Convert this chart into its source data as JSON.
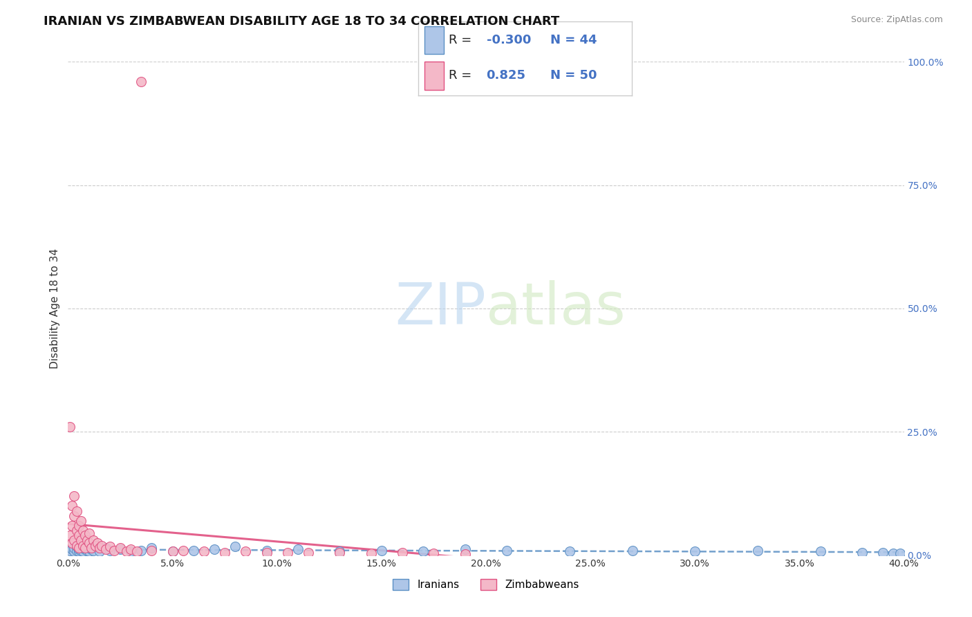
{
  "title": "IRANIAN VS ZIMBABWEAN DISABILITY AGE 18 TO 34 CORRELATION CHART",
  "source_text": "Source: ZipAtlas.com",
  "ylabel": "Disability Age 18 to 34",
  "xlim": [
    0.0,
    0.4
  ],
  "ylim": [
    0.0,
    1.0
  ],
  "xticks": [
    0.0,
    0.05,
    0.1,
    0.15,
    0.2,
    0.25,
    0.3,
    0.35,
    0.4
  ],
  "xticklabels": [
    "0.0%",
    "5.0%",
    "10.0%",
    "15.0%",
    "20.0%",
    "25.0%",
    "30.0%",
    "35.0%",
    "40.0%"
  ],
  "yticks": [
    0.0,
    0.25,
    0.5,
    0.75,
    1.0
  ],
  "yticklabels": [
    "0.0%",
    "25.0%",
    "50.0%",
    "75.0%",
    "100.0%"
  ],
  "iranian_color": "#aec6e8",
  "zimbabwean_color": "#f4b8c8",
  "iranian_edge": "#5a8fc4",
  "zimbabwean_edge": "#e05080",
  "trend_iranian_color": "#5a8fc4",
  "trend_zimbabwean_color": "#e05080",
  "R_iranian": -0.3,
  "N_iranian": 44,
  "R_zimbabwean": 0.825,
  "N_zimbabwean": 50,
  "legend_label_iranian": "Iranians",
  "legend_label_zimbabwean": "Zimbabweans",
  "watermark_zip": "ZIP",
  "watermark_atlas": "atlas",
  "background_color": "#ffffff",
  "grid_color": "#cccccc",
  "title_fontsize": 13,
  "axis_label_fontsize": 11,
  "tick_fontsize": 10,
  "legend_fontsize": 13,
  "watermark_fontsize": 60,
  "iranian_x": [
    0.001,
    0.002,
    0.003,
    0.003,
    0.004,
    0.004,
    0.005,
    0.005,
    0.006,
    0.006,
    0.007,
    0.008,
    0.009,
    0.01,
    0.011,
    0.012,
    0.013,
    0.015,
    0.018,
    0.02,
    0.025,
    0.03,
    0.035,
    0.04,
    0.05,
    0.06,
    0.07,
    0.08,
    0.095,
    0.11,
    0.13,
    0.15,
    0.17,
    0.19,
    0.21,
    0.24,
    0.27,
    0.3,
    0.33,
    0.36,
    0.38,
    0.39,
    0.395,
    0.398
  ],
  "iranian_y": [
    0.01,
    0.012,
    0.008,
    0.015,
    0.01,
    0.018,
    0.008,
    0.012,
    0.01,
    0.015,
    0.008,
    0.012,
    0.01,
    0.008,
    0.012,
    0.01,
    0.018,
    0.008,
    0.015,
    0.01,
    0.012,
    0.008,
    0.01,
    0.015,
    0.008,
    0.01,
    0.012,
    0.018,
    0.01,
    0.012,
    0.008,
    0.01,
    0.008,
    0.012,
    0.01,
    0.008,
    0.01,
    0.008,
    0.01,
    0.008,
    0.006,
    0.005,
    0.004,
    0.004
  ],
  "zimbabwean_x": [
    0.001,
    0.001,
    0.002,
    0.002,
    0.002,
    0.003,
    0.003,
    0.003,
    0.004,
    0.004,
    0.004,
    0.005,
    0.005,
    0.005,
    0.006,
    0.006,
    0.007,
    0.007,
    0.008,
    0.008,
    0.009,
    0.01,
    0.01,
    0.011,
    0.012,
    0.013,
    0.014,
    0.015,
    0.016,
    0.018,
    0.02,
    0.022,
    0.025,
    0.028,
    0.03,
    0.033,
    0.04,
    0.05,
    0.055,
    0.065,
    0.075,
    0.085,
    0.095,
    0.105,
    0.115,
    0.13,
    0.145,
    0.16,
    0.175,
    0.19
  ],
  "zimbabwean_y": [
    0.26,
    0.04,
    0.1,
    0.06,
    0.025,
    0.12,
    0.08,
    0.03,
    0.09,
    0.05,
    0.02,
    0.06,
    0.04,
    0.015,
    0.07,
    0.03,
    0.05,
    0.02,
    0.04,
    0.015,
    0.03,
    0.025,
    0.045,
    0.015,
    0.03,
    0.02,
    0.025,
    0.015,
    0.02,
    0.012,
    0.018,
    0.01,
    0.015,
    0.008,
    0.012,
    0.008,
    0.01,
    0.008,
    0.01,
    0.008,
    0.006,
    0.008,
    0.006,
    0.005,
    0.006,
    0.005,
    0.004,
    0.005,
    0.004,
    0.003
  ],
  "zimbabwean_outlier_x": [
    0.035
  ],
  "zimbabwean_outlier_y": [
    0.96
  ]
}
